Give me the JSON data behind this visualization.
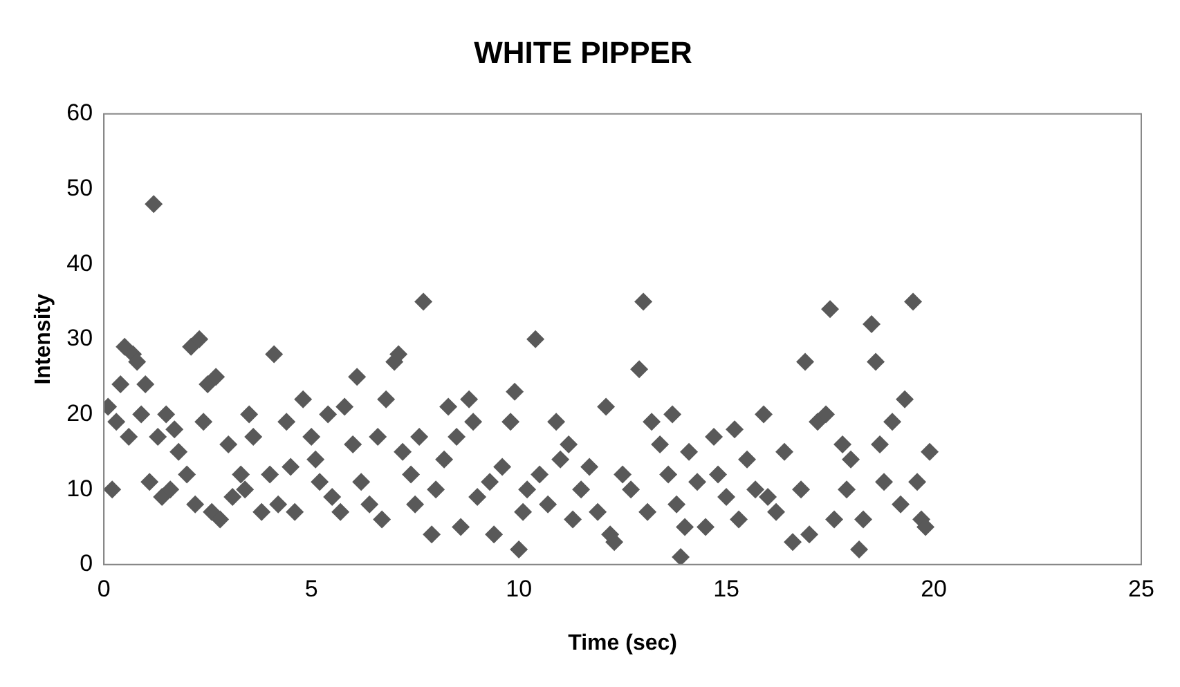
{
  "chart_data": {
    "type": "scatter",
    "title": "WHITE PIPPER",
    "xlabel": "Time (sec)",
    "ylabel": "Intensity",
    "xlim": [
      0,
      25
    ],
    "xticks": [
      0,
      5,
      10,
      15,
      20,
      25
    ],
    "ylim": [
      0,
      60
    ],
    "yticks": [
      0,
      10,
      20,
      30,
      40,
      50,
      60
    ],
    "grid": false,
    "legend": false,
    "marker": "diamond",
    "series": [
      {
        "color": "#595959",
        "x": [
          0.1,
          0.2,
          0.3,
          0.4,
          0.5,
          0.6,
          0.7,
          0.8,
          0.9,
          1,
          1.1,
          1.2,
          1.3,
          1.4,
          1.5,
          1.6,
          1.7,
          1.8,
          2,
          2.1,
          2.2,
          2.3,
          2.4,
          2.5,
          2.6,
          2.7,
          2.8,
          3,
          3.1,
          3.3,
          3.4,
          3.5,
          3.6,
          3.8,
          4,
          4.1,
          4.2,
          4.4,
          4.5,
          4.6,
          4.8,
          5,
          5.1,
          5.2,
          5.4,
          5.5,
          5.7,
          5.8,
          6,
          6.1,
          6.2,
          6.4,
          6.6,
          6.7,
          6.8,
          7,
          7.1,
          7.2,
          7.4,
          7.5,
          7.6,
          7.7,
          7.9,
          8,
          8.2,
          8.3,
          8.5,
          8.6,
          8.8,
          8.9,
          9,
          9.3,
          9.4,
          9.6,
          9.8,
          9.9,
          10,
          10.1,
          10.2,
          10.4,
          10.5,
          10.7,
          10.9,
          11,
          11.2,
          11.3,
          11.5,
          11.7,
          11.9,
          12.1,
          12.2,
          12.3,
          12.5,
          12.7,
          12.9,
          13,
          13.1,
          13.2,
          13.4,
          13.6,
          13.7,
          13.8,
          13.9,
          14,
          14.1,
          14.3,
          14.5,
          14.7,
          14.8,
          15,
          15.2,
          15.3,
          15.5,
          15.7,
          15.9,
          16,
          16.2,
          16.4,
          16.6,
          16.8,
          16.9,
          17,
          17.2,
          17.4,
          17.5,
          17.6,
          17.8,
          17.9,
          18,
          18.2,
          18.3,
          18.5,
          18.6,
          18.7,
          18.8,
          19,
          19.2,
          19.3,
          19.5,
          19.6,
          19.7,
          19.8,
          19.9
        ],
        "values": [
          21,
          10,
          19,
          24,
          29,
          17,
          28,
          27,
          20,
          24,
          11,
          48,
          17,
          9,
          20,
          10,
          18,
          15,
          12,
          29,
          8,
          30,
          19,
          24,
          7,
          25,
          6,
          16,
          9,
          12,
          10,
          20,
          17,
          7,
          12,
          28,
          8,
          19,
          13,
          7,
          22,
          17,
          14,
          11,
          20,
          9,
          7,
          21,
          16,
          25,
          11,
          8,
          17,
          6,
          22,
          27,
          28,
          15,
          12,
          8,
          17,
          35,
          4,
          10,
          14,
          21,
          17,
          5,
          22,
          19,
          9,
          11,
          4,
          13,
          19,
          23,
          2,
          7,
          10,
          30,
          12,
          8,
          19,
          14,
          16,
          6,
          10,
          13,
          7,
          21,
          4,
          3,
          12,
          10,
          26,
          35,
          7,
          19,
          16,
          12,
          20,
          8,
          1,
          5,
          15,
          11,
          5,
          17,
          12,
          9,
          18,
          6,
          14,
          10,
          20,
          9,
          7,
          15,
          3,
          10,
          27,
          4,
          19,
          20,
          34,
          6,
          16,
          10,
          14,
          2,
          6,
          32,
          27,
          16,
          11,
          19,
          8,
          22,
          35,
          11,
          6,
          5,
          15
        ]
      }
    ]
  }
}
